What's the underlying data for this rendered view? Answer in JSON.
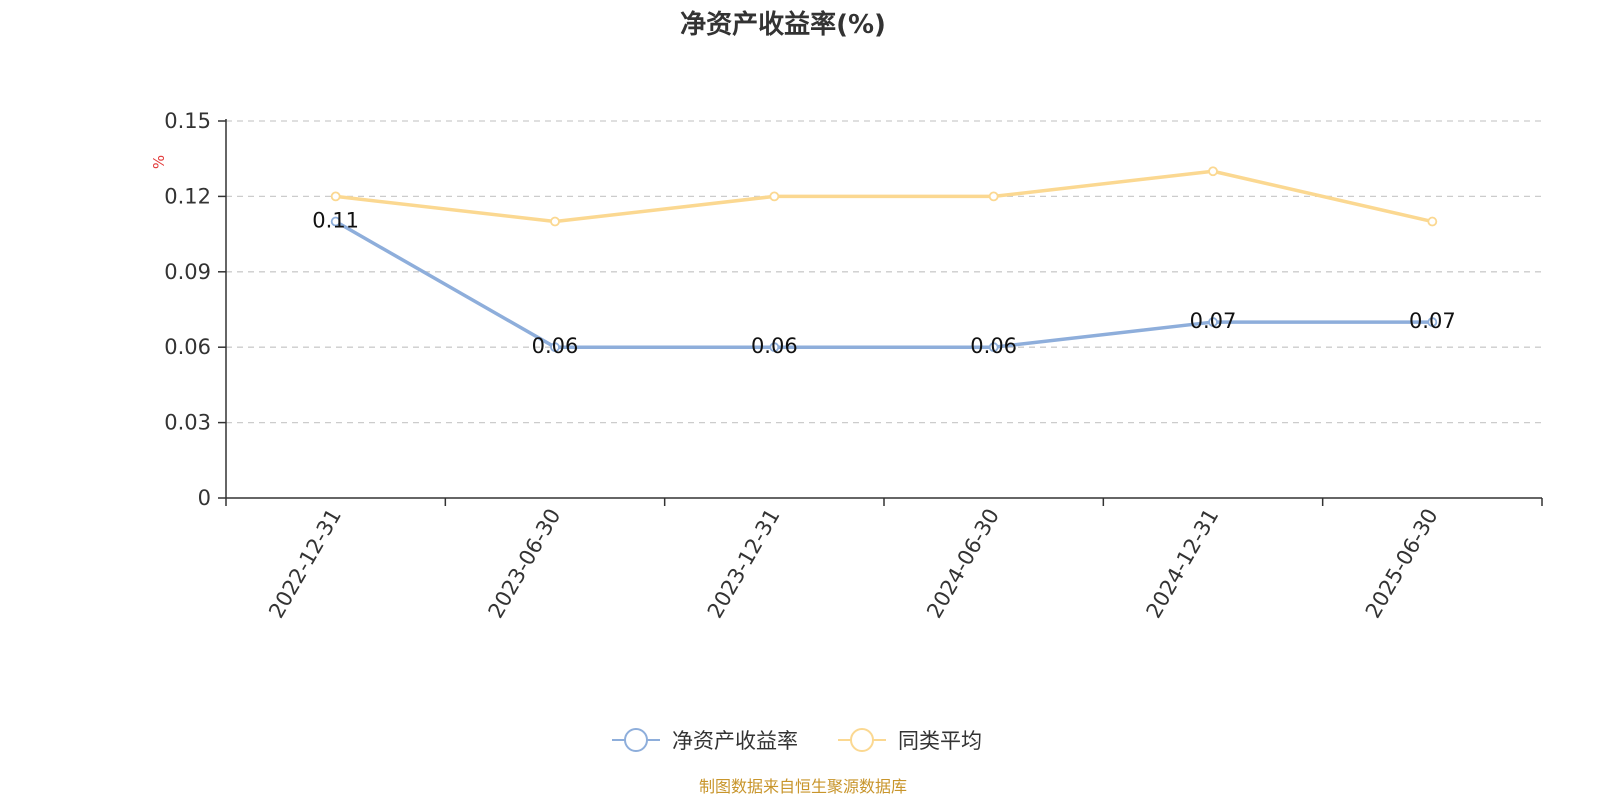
{
  "chart_data": {
    "type": "line",
    "title": "净资产收益率(%)",
    "ylabel": "%",
    "xlabel": "",
    "categories": [
      "2022-12-31",
      "2023-06-30",
      "2023-12-31",
      "2024-06-30",
      "2024-12-31",
      "2025-06-30"
    ],
    "y_ticks": [
      "0",
      "0.03",
      "0.06",
      "0.09",
      "0.12",
      "0.15"
    ],
    "ylim": [
      0,
      0.15
    ],
    "grid": true,
    "legend_position": "bottom",
    "series": [
      {
        "name": "净资产收益率",
        "values": [
          0.11,
          0.06,
          0.06,
          0.06,
          0.07,
          0.07
        ],
        "labels": [
          "0.11",
          "0.06",
          "0.06",
          "0.06",
          "0.07",
          "0.07"
        ],
        "color": "#8eaedb"
      },
      {
        "name": "同类平均",
        "values": [
          0.12,
          0.11,
          0.12,
          0.12,
          0.13,
          0.11
        ],
        "color": "#fbd891"
      }
    ]
  },
  "source_note": "制图数据来自恒生聚源数据库",
  "colors": {
    "axis": "#333333",
    "grid": "#cccccc",
    "source_text": "#c8952b",
    "unit_text": "#e23a3a"
  }
}
